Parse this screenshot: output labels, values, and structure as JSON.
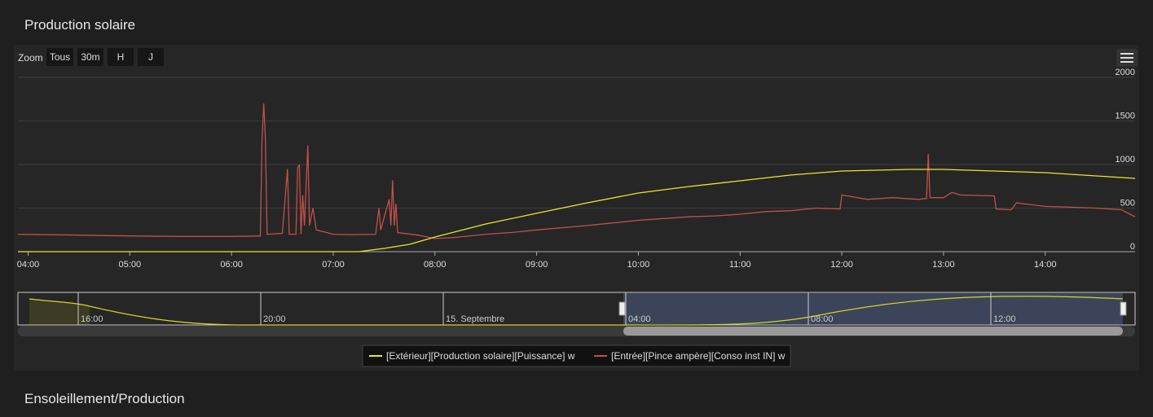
{
  "page": {
    "title": "Production solaire",
    "next_title": "Ensoleillement/Production",
    "zoom_label": "Zoom",
    "buttons": [
      "Tous",
      "30m",
      "H",
      "J"
    ],
    "navigator_ticks": [
      {
        "label": "16:00"
      },
      {
        "label": "20:00"
      },
      {
        "label": "15. Septembre"
      },
      {
        "label": "04:00"
      },
      {
        "label": "08:00"
      },
      {
        "label": "12:00"
      }
    ]
  },
  "chart_data": {
    "type": "line",
    "xlim": [
      "03:54",
      "14:53"
    ],
    "xticks": [
      "04:00",
      "05:00",
      "06:00",
      "07:00",
      "08:00",
      "09:00",
      "10:00",
      "11:00",
      "12:00",
      "13:00",
      "14:00"
    ],
    "ylim": [
      0,
      2000
    ],
    "yticks": [
      0,
      500,
      1000,
      1500,
      2000
    ],
    "grid": true,
    "series": [
      {
        "name": "[Extérieur][Production solaire][Puissance] w",
        "color": "#e8e82a",
        "x": [
          "03:54",
          "07:15",
          "07:30",
          "07:45",
          "08:00",
          "08:30",
          "09:00",
          "09:30",
          "10:00",
          "10:30",
          "11:00",
          "11:30",
          "12:00",
          "12:40",
          "13:00",
          "13:30",
          "14:00",
          "14:30",
          "14:53"
        ],
        "values": [
          0,
          0,
          37,
          84,
          168,
          318,
          440,
          561,
          673,
          748,
          813,
          879,
          925,
          944,
          944,
          925,
          907,
          869,
          841
        ]
      },
      {
        "name": "[Entrée][Pince ampère][Conso inst IN] w",
        "color": "#c0504d",
        "x": [
          "03:54",
          "04:30",
          "05:00",
          "05:30",
          "06:00",
          "06:17",
          "06:18",
          "06:19",
          "06:20",
          "06:21",
          "06:30",
          "06:33",
          "06:34",
          "06:38",
          "06:39",
          "06:40",
          "06:41",
          "06:42",
          "06:43",
          "06:45",
          "06:46",
          "06:48",
          "06:50",
          "07:00",
          "07:10",
          "07:25",
          "07:27",
          "07:28",
          "07:33",
          "07:34",
          "07:35",
          "07:36",
          "07:37",
          "07:38",
          "07:50",
          "08:00",
          "08:10",
          "08:30",
          "08:45",
          "09:00",
          "09:30",
          "09:45",
          "10:00",
          "10:15",
          "10:30",
          "10:45",
          "11:00",
          "11:15",
          "11:30",
          "11:45",
          "11:59",
          "12:00",
          "12:15",
          "12:30",
          "12:45",
          "12:50",
          "12:51",
          "12:52",
          "13:00",
          "13:05",
          "13:10",
          "13:30",
          "13:31",
          "13:40",
          "13:43",
          "14:00",
          "14:15",
          "14:30",
          "14:45",
          "14:50",
          "14:53"
        ],
        "values": [
          200,
          190,
          180,
          175,
          175,
          180,
          1300,
          1700,
          1300,
          200,
          210,
          950,
          200,
          200,
          960,
          1000,
          200,
          650,
          300,
          1220,
          300,
          500,
          250,
          200,
          195,
          200,
          500,
          250,
          600,
          300,
          820,
          300,
          550,
          220,
          190,
          150,
          160,
          200,
          220,
          250,
          300,
          330,
          360,
          380,
          400,
          410,
          430,
          460,
          470,
          500,
          490,
          650,
          600,
          620,
          600,
          610,
          1120,
          620,
          620,
          680,
          650,
          640,
          490,
          480,
          560,
          520,
          510,
          500,
          480,
          430,
          400
        ]
      }
    ]
  }
}
